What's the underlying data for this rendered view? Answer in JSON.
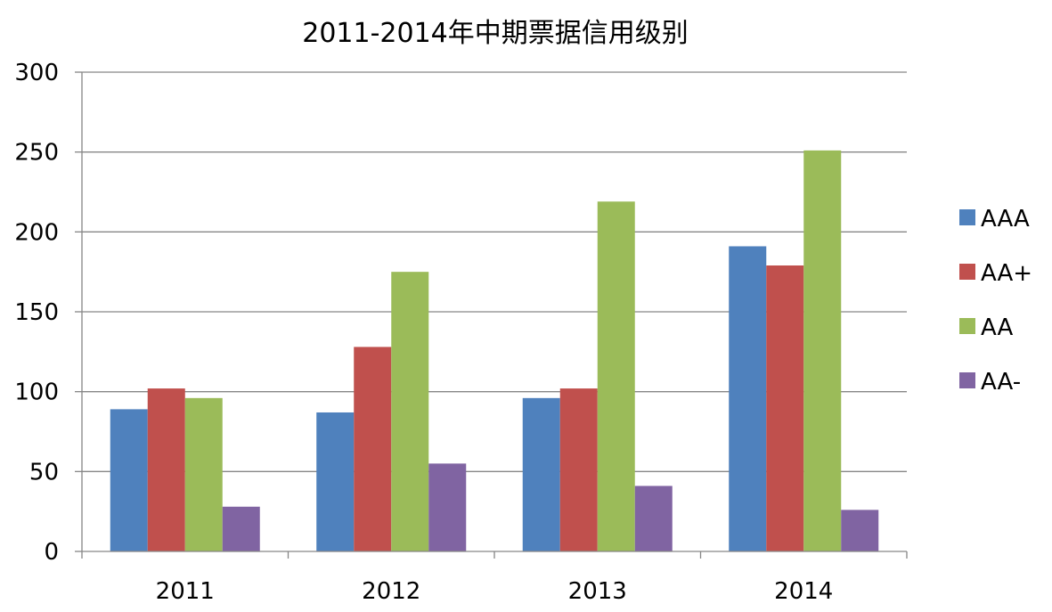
{
  "chart_data": {
    "type": "bar",
    "title": "2011-2014年中期票据信用级别",
    "xlabel": "",
    "ylabel": "",
    "categories": [
      "2011",
      "2012",
      "2013",
      "2014"
    ],
    "ylim": [
      0,
      300
    ],
    "yticks": [
      0,
      50,
      100,
      150,
      200,
      250,
      300
    ],
    "grid": true,
    "legend_position": "right",
    "series": [
      {
        "name": "AAA",
        "color": "#4f81bd",
        "values": [
          89,
          87,
          96,
          191
        ]
      },
      {
        "name": "AA+",
        "color": "#c0504d",
        "values": [
          102,
          128,
          102,
          179
        ]
      },
      {
        "name": "AA",
        "color": "#9bbb59",
        "values": [
          96,
          175,
          219,
          251
        ]
      },
      {
        "name": "AA-",
        "color": "#8064a2",
        "values": [
          28,
          55,
          41,
          26
        ]
      }
    ]
  }
}
